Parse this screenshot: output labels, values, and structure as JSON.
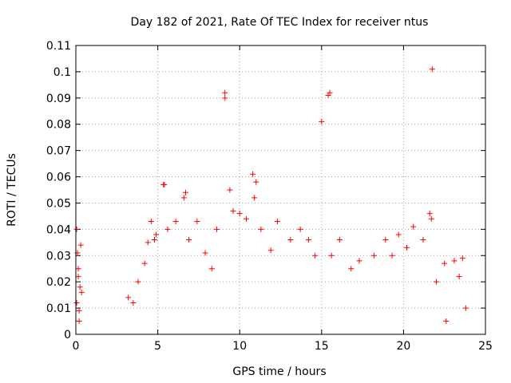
{
  "chart_data": {
    "type": "scatter",
    "title": "Day 182 of 2021, Rate Of TEC Index for receiver ntus",
    "xlabel": "GPS time / hours",
    "ylabel": "ROTI / TECUs",
    "xlim": [
      0,
      25
    ],
    "ylim": [
      0,
      0.11
    ],
    "xticks": [
      "0",
      "5",
      "10",
      "15",
      "20",
      "25"
    ],
    "yticks": [
      "0",
      "0.01",
      "0.02",
      "0.03",
      "0.04",
      "0.05",
      "0.06",
      "0.07",
      "0.08",
      "0.09",
      "0.1",
      "0.11"
    ],
    "grid": true,
    "marker": "+",
    "series_color": "#ff0000",
    "series": [
      {
        "points": [
          [
            0.05,
            0.012
          ],
          [
            0.1,
            0.031
          ],
          [
            0.15,
            0.025
          ],
          [
            0.2,
            0.009
          ],
          [
            0.25,
            0.018
          ],
          [
            0.05,
            0.04
          ],
          [
            0.3,
            0.034
          ],
          [
            0.2,
            0.005
          ],
          [
            0.35,
            0.016
          ],
          [
            0.15,
            0.022
          ],
          [
            3.2,
            0.014
          ],
          [
            3.5,
            0.012
          ],
          [
            3.8,
            0.02
          ],
          [
            4.2,
            0.027
          ],
          [
            4.4,
            0.035
          ],
          [
            4.6,
            0.043
          ],
          [
            4.8,
            0.036
          ],
          [
            4.9,
            0.038
          ],
          [
            5.35,
            0.057
          ],
          [
            5.4,
            0.057
          ],
          [
            5.6,
            0.04
          ],
          [
            6.1,
            0.043
          ],
          [
            6.6,
            0.052
          ],
          [
            6.7,
            0.054
          ],
          [
            6.9,
            0.036
          ],
          [
            7.4,
            0.043
          ],
          [
            7.9,
            0.031
          ],
          [
            8.3,
            0.025
          ],
          [
            8.6,
            0.04
          ],
          [
            9.1,
            0.092
          ],
          [
            9.1,
            0.09
          ],
          [
            9.4,
            0.055
          ],
          [
            9.6,
            0.047
          ],
          [
            10.0,
            0.046
          ],
          [
            10.4,
            0.044
          ],
          [
            10.8,
            0.061
          ],
          [
            11.0,
            0.058
          ],
          [
            10.9,
            0.052
          ],
          [
            11.3,
            0.04
          ],
          [
            11.9,
            0.032
          ],
          [
            12.3,
            0.043
          ],
          [
            13.1,
            0.036
          ],
          [
            13.7,
            0.04
          ],
          [
            14.2,
            0.036
          ],
          [
            14.6,
            0.03
          ],
          [
            15.0,
            0.081
          ],
          [
            15.4,
            0.091
          ],
          [
            15.5,
            0.092
          ],
          [
            15.6,
            0.03
          ],
          [
            16.1,
            0.036
          ],
          [
            16.8,
            0.025
          ],
          [
            17.3,
            0.028
          ],
          [
            18.2,
            0.03
          ],
          [
            18.9,
            0.036
          ],
          [
            19.3,
            0.03
          ],
          [
            19.7,
            0.038
          ],
          [
            20.2,
            0.033
          ],
          [
            20.6,
            0.041
          ],
          [
            21.2,
            0.036
          ],
          [
            21.6,
            0.046
          ],
          [
            21.7,
            0.044
          ],
          [
            21.75,
            0.101
          ],
          [
            22.0,
            0.02
          ],
          [
            22.5,
            0.027
          ],
          [
            22.6,
            0.005
          ],
          [
            23.1,
            0.028
          ],
          [
            23.4,
            0.022
          ],
          [
            23.6,
            0.029
          ],
          [
            23.8,
            0.01
          ]
        ]
      }
    ]
  }
}
